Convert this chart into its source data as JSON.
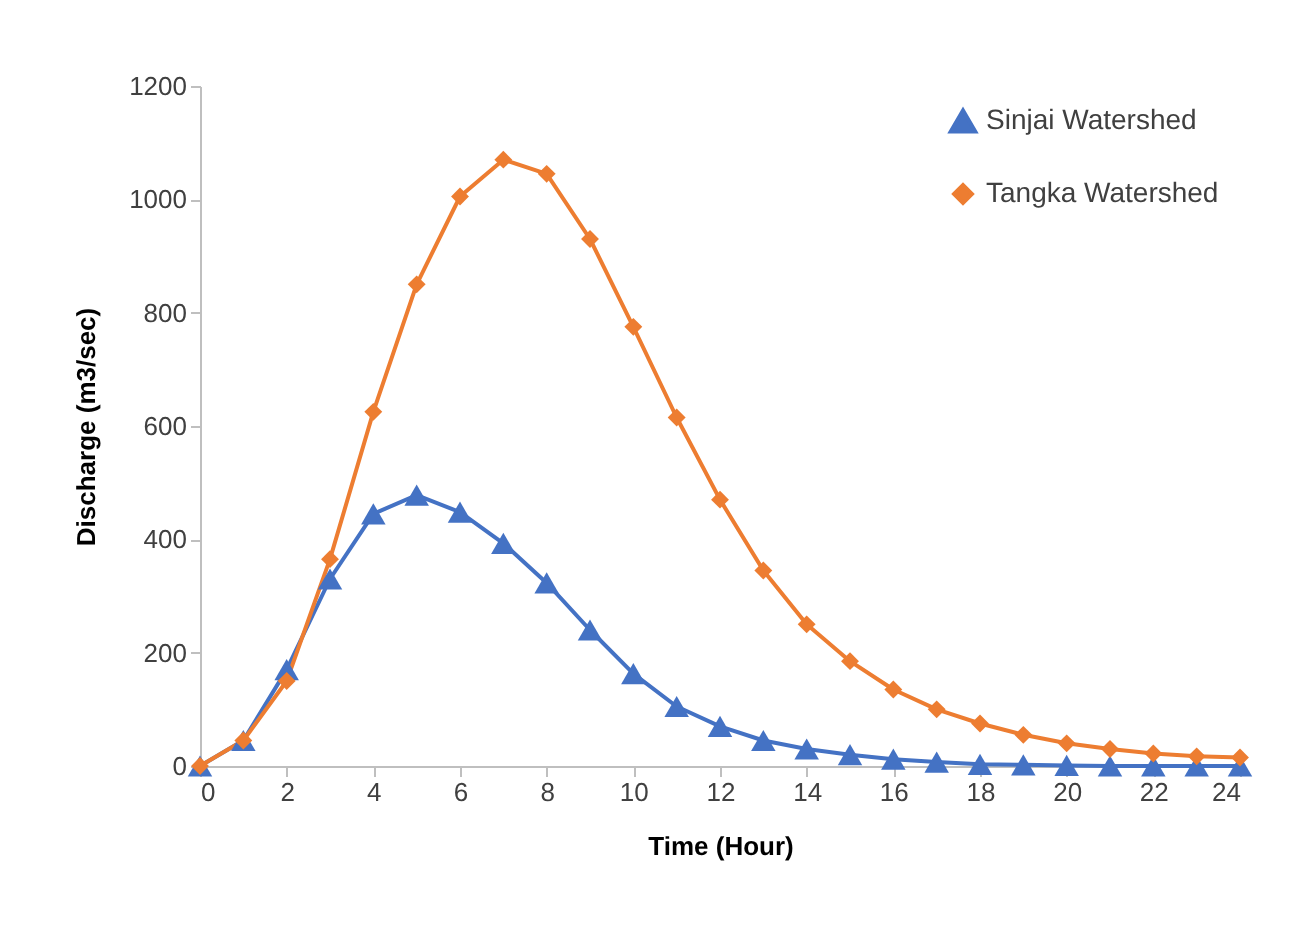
{
  "chart_data": {
    "type": "line",
    "xlabel": "Time (Hour)",
    "ylabel": "Discharge  (m3/sec)",
    "x": [
      0,
      1,
      2,
      3,
      4,
      5,
      6,
      7,
      8,
      9,
      10,
      11,
      12,
      13,
      14,
      15,
      16,
      17,
      18,
      19,
      20,
      21,
      22,
      23,
      24
    ],
    "series": [
      {
        "name": "Sinjai Watershed",
        "color": "#4472c4",
        "marker": "triangle",
        "values": [
          0,
          45,
          170,
          330,
          445,
          478,
          448,
          393,
          323,
          240,
          163,
          105,
          70,
          45,
          30,
          20,
          12,
          7,
          3,
          2,
          1,
          0,
          0,
          0,
          0
        ]
      },
      {
        "name": "Tangka Watershed",
        "color": "#ed7d31",
        "marker": "diamond",
        "values": [
          0,
          45,
          150,
          365,
          625,
          850,
          1005,
          1070,
          1045,
          930,
          775,
          615,
          470,
          345,
          250,
          185,
          135,
          100,
          75,
          55,
          40,
          30,
          22,
          17,
          15
        ]
      }
    ],
    "xlim": [
      0,
      24
    ],
    "xticks": [
      0,
      2,
      4,
      6,
      8,
      10,
      12,
      14,
      16,
      18,
      20,
      22,
      24
    ],
    "ylim": [
      0,
      1200
    ],
    "yticks": [
      0,
      200,
      400,
      600,
      800,
      1000,
      1200
    ],
    "grid": false,
    "legend": "top right",
    "line_style": "solid"
  }
}
